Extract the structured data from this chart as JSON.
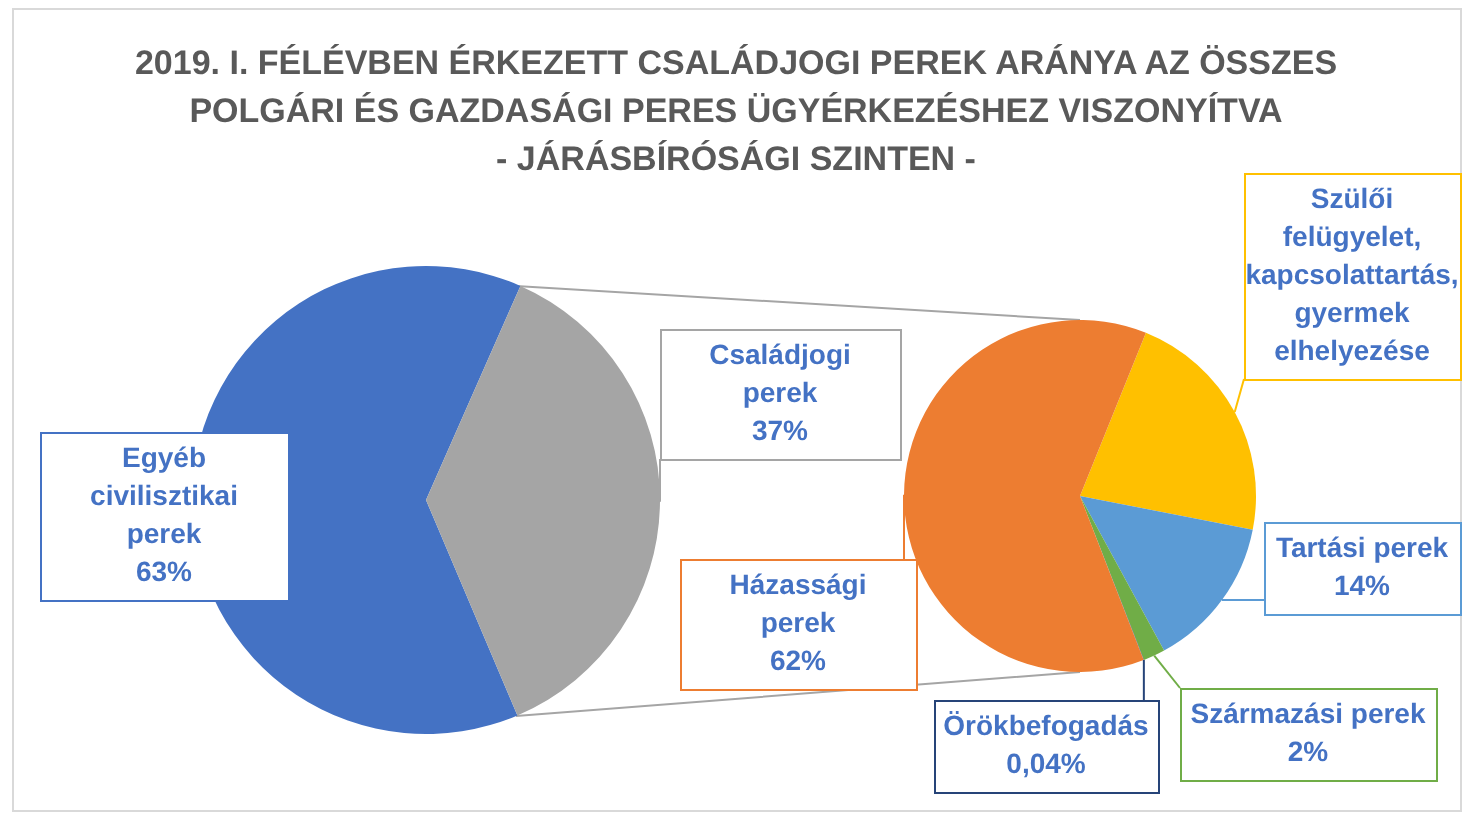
{
  "chart_data": [
    {
      "type": "pie",
      "title": "2019. I. FÉLÉVBEN ÉRKEZETT CSALÁDJOGI PEREK ARÁNYA AZ ÖSSZES\nPOLGÁRI ÉS GAZDASÁGI PERES ÜGYÉRKEZÉSHEZ VISZONYÍTVA\n- JÁRÁSBÍRÓSÁGI SZINTEN -",
      "categories": [
        "Egyéb civilisztikai perek",
        "Családjogi perek"
      ],
      "values": [
        63,
        37
      ],
      "colors": [
        "#4472c4",
        "#a5a5a5"
      ],
      "value_labels": [
        "63%",
        "37%"
      ]
    },
    {
      "type": "pie",
      "categories": [
        "Szülői felügyelet, kapcsolattartás, gyermek elhelyezése",
        "Tartási perek",
        "Származási perek",
        "Örökbefogadás",
        "Házassági perek"
      ],
      "values": [
        21.96,
        14,
        2,
        0.04,
        62
      ],
      "colors": [
        "#ffc000",
        "#5b9bd5",
        "#70ad47",
        "#264478",
        "#ed7d31"
      ],
      "value_labels": [
        null,
        "14%",
        "2%",
        "0,04%",
        "62%"
      ]
    }
  ]
}
